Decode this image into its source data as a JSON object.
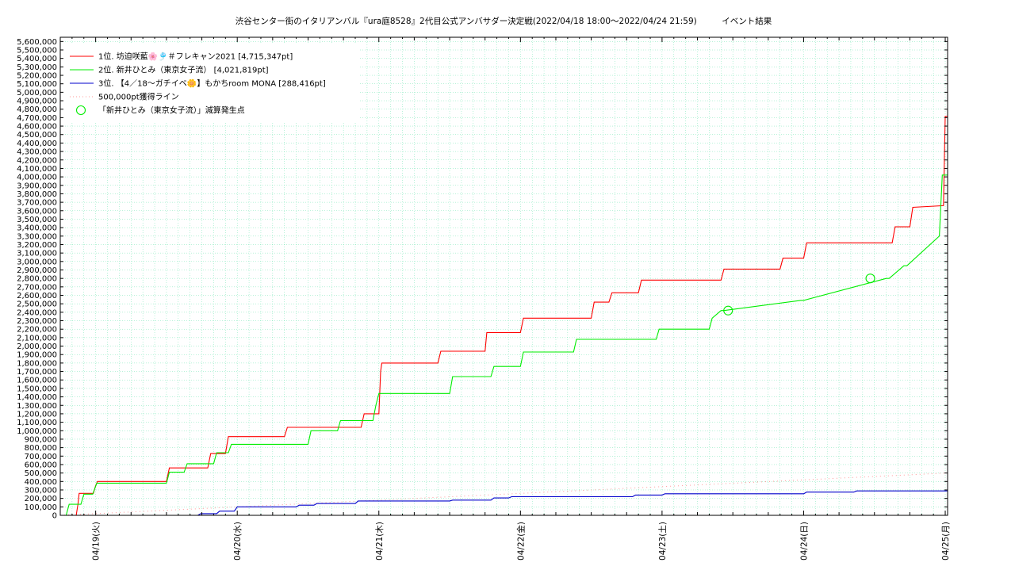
{
  "chart_data": {
    "type": "line",
    "title": "渋谷センター街のイタリアンバル『ura庭8528』2代目公式アンバサダー決定戦(2022/04/18 18:00～2022/04/24 21:59)　　　イベント結果",
    "xlabel": "",
    "ylabel": "",
    "x_tick_labels": [
      "04/19(火)",
      "04/20(水)",
      "04/21(木)",
      "04/22(金)",
      "04/23(土)",
      "04/24(日)",
      "04/25(月)"
    ],
    "x_tick_positions_hours": [
      6,
      30,
      54,
      78,
      102,
      126,
      150
    ],
    "x_range_hours": [
      0,
      150.4
    ],
    "x_axis_note": "hours since 2022/04/18 18:00",
    "ylim": [
      0,
      5650000
    ],
    "y_ticks": [
      "0",
      "100,000",
      "200,000",
      "300,000",
      "400,000",
      "500,000",
      "600,000",
      "700,000",
      "800,000",
      "900,000",
      "1,000,000",
      "1,100,000",
      "1,200,000",
      "1,300,000",
      "1,400,000",
      "1,500,000",
      "1,600,000",
      "1,700,000",
      "1,800,000",
      "1,900,000",
      "2,000,000",
      "2,100,000",
      "2,200,000",
      "2,300,000",
      "2,400,000",
      "2,500,000",
      "2,600,000",
      "2,700,000",
      "2,800,000",
      "2,900,000",
      "3,000,000",
      "3,100,000",
      "3,200,000",
      "3,300,000",
      "3,400,000",
      "3,500,000",
      "3,600,000",
      "3,700,000",
      "3,800,000",
      "3,900,000",
      "4,000,000",
      "4,100,000",
      "4,200,000",
      "4,300,000",
      "4,400,000",
      "4,500,000",
      "4,600,000",
      "4,700,000",
      "4,800,000",
      "4,900,000",
      "5,000,000",
      "5,100,000",
      "5,200,000",
      "5,300,000",
      "5,400,000",
      "5,500,000",
      "5,600,000"
    ],
    "grid": true,
    "legend_position": "top-left",
    "series": [
      {
        "name": "1位. 坊迫咲藍🌸🎐＃フレキャン2021 [4,715,347pt]",
        "color": "#ff0000",
        "x": [
          0,
          2.7,
          3.0,
          3.2,
          5.6,
          6.0,
          6.3,
          18.0,
          18.5,
          25.0,
          25.5,
          28.0,
          28.5,
          38.0,
          38.5,
          51.0,
          51.5,
          54.0,
          54.3,
          54.5,
          64.0,
          64.5,
          72.0,
          72.3,
          78.0,
          78.5,
          90.0,
          90.5,
          93.0,
          93.5,
          98.0,
          98.5,
          112.0,
          112.5,
          122.0,
          122.5,
          126.0,
          126.5,
          141.0,
          141.5,
          144.0,
          144.5,
          149.7,
          150.0,
          150.4
        ],
        "y": [
          0,
          0,
          130000,
          260000,
          260000,
          350000,
          400000,
          400000,
          560000,
          560000,
          730000,
          730000,
          930000,
          930000,
          1040000,
          1040000,
          1200000,
          1200000,
          1700000,
          1800000,
          1800000,
          1940000,
          1940000,
          2160000,
          2160000,
          2330000,
          2330000,
          2520000,
          2520000,
          2630000,
          2630000,
          2780000,
          2780000,
          2910000,
          2910000,
          3040000,
          3040000,
          3220000,
          3220000,
          3410000,
          3410000,
          3640000,
          3660000,
          4715347,
          4715347
        ]
      },
      {
        "name": "2位. 新井ひとみ（東京女子流） [4,021,819pt]",
        "color": "#00ee00",
        "x": [
          0,
          1.0,
          1.5,
          3.5,
          4.0,
          5.5,
          6.2,
          18.0,
          18.5,
          21.0,
          21.5,
          26.0,
          26.5,
          28.5,
          29.0,
          42.0,
          42.5,
          47.0,
          47.5,
          53.0,
          53.5,
          54.0,
          66.0,
          66.5,
          73.0,
          73.5,
          78.0,
          78.5,
          87.0,
          87.5,
          101.0,
          101.5,
          110.0,
          110.5,
          112.0,
          112.5,
          125.5,
          126.0,
          140.0,
          140.5,
          143.0,
          143.5,
          149.0,
          149.5,
          150.4
        ],
        "y": [
          0,
          0,
          130000,
          130000,
          250000,
          250000,
          380000,
          380000,
          510000,
          510000,
          610000,
          610000,
          740000,
          740000,
          840000,
          840000,
          1000000,
          1000000,
          1120000,
          1120000,
          1300000,
          1440000,
          1440000,
          1640000,
          1640000,
          1760000,
          1760000,
          1930000,
          1930000,
          2080000,
          2080000,
          2200000,
          2200000,
          2330000,
          2420000,
          2420000,
          2540000,
          2540000,
          2800000,
          2800000,
          2950000,
          2950000,
          3300000,
          4021819,
          4021819
        ]
      },
      {
        "name": "3位. 【4／18〜ガチイベ🌼】もかちroom MONA [288,416pt]",
        "color": "#0000cc",
        "x": [
          23.3,
          23.8,
          26.5,
          27.0,
          29.5,
          30.0,
          40.0,
          40.5,
          43.0,
          43.5,
          50.0,
          50.5,
          66.0,
          66.5,
          73.0,
          73.5,
          76.0,
          76.5,
          97.0,
          97.5,
          102.0,
          102.5,
          126.0,
          126.5,
          134.5,
          135.0,
          150.4
        ],
        "y": [
          0,
          20000,
          20000,
          50000,
          50000,
          100000,
          100000,
          120000,
          120000,
          140000,
          140000,
          170000,
          170000,
          180000,
          180000,
          205000,
          205000,
          220000,
          220000,
          240000,
          240000,
          255000,
          255000,
          275000,
          275000,
          288416,
          288416
        ]
      },
      {
        "name": "500,000pt獲得ライン",
        "color": "#ff9999",
        "style": "dotted",
        "x": [
          0,
          150.4
        ],
        "y": [
          0,
          500000
        ]
      }
    ],
    "markers": {
      "name": "「新井ひとみ（東京女子流）」減算発生点",
      "color": "#00ee00",
      "shape": "circle",
      "x": [
        113.2,
        137.3
      ],
      "y": [
        2420000,
        2800000
      ]
    }
  }
}
